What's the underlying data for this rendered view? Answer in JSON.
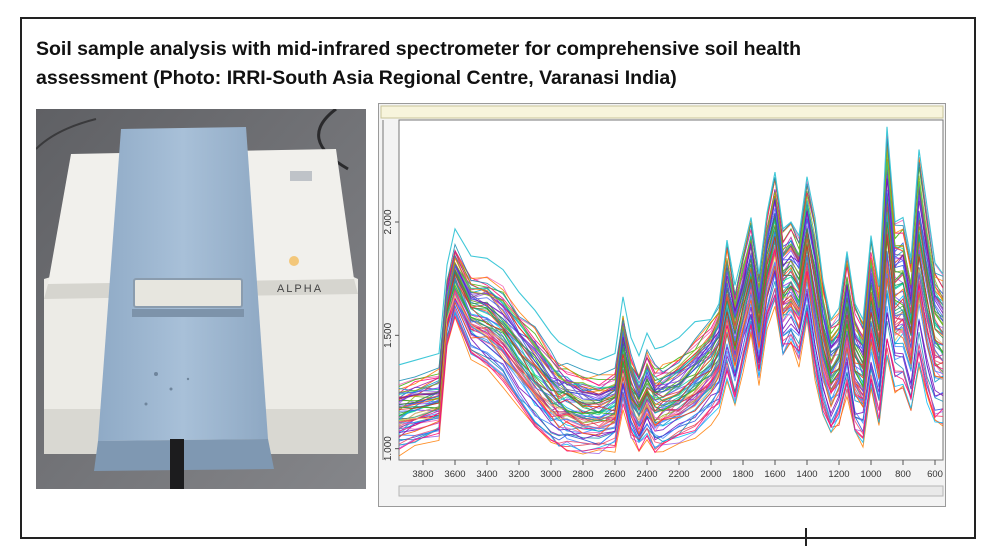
{
  "caption": {
    "line1": "Soil sample analysis with mid-infrared spectrometer for comprehensive soil health",
    "line2": "assessment (Photo: IRRI-South Asia Regional Centre, Varanasi India)"
  },
  "photo": {
    "device_label": "ALPHA",
    "colors": {
      "body": "#e9e7e1",
      "lid": "#9db6cf",
      "background": "#6d6e72"
    }
  },
  "chart_data": {
    "type": "line",
    "title": "",
    "xlabel": "",
    "ylabel": "",
    "x_ticks": [
      "3800",
      "3600",
      "3400",
      "3200",
      "3000",
      "2800",
      "2600",
      "2400",
      "2200",
      "2000",
      "1800",
      "1600",
      "1400",
      "1200",
      "1000",
      "800",
      "600"
    ],
    "y_ticks": [
      "1.000",
      "1.500",
      "2.000"
    ],
    "xlim": [
      3950,
      550
    ],
    "ylim": [
      0.95,
      2.45
    ],
    "x_reversed": true,
    "grid": false,
    "legend": "none",
    "envelope": {
      "x": [
        3950,
        3850,
        3700,
        3650,
        3600,
        3500,
        3400,
        3300,
        3200,
        3100,
        3000,
        2950,
        2900,
        2800,
        2700,
        2600,
        2550,
        2500,
        2450,
        2400,
        2350,
        2300,
        2200,
        2100,
        2000,
        1950,
        1900,
        1850,
        1800,
        1750,
        1700,
        1650,
        1600,
        1550,
        1500,
        1450,
        1400,
        1350,
        1300,
        1250,
        1200,
        1150,
        1100,
        1050,
        1000,
        950,
        900,
        850,
        800,
        750,
        700,
        650,
        600,
        550
      ],
      "low": [
        1.0,
        1.02,
        1.05,
        1.45,
        1.58,
        1.4,
        1.35,
        1.28,
        1.18,
        1.08,
        1.02,
        1.0,
        0.99,
        0.98,
        0.99,
        1.01,
        1.2,
        1.05,
        0.99,
        1.05,
        0.99,
        1.0,
        1.03,
        1.07,
        1.13,
        1.18,
        1.3,
        1.2,
        1.35,
        1.5,
        1.3,
        1.55,
        1.65,
        1.4,
        1.45,
        1.38,
        1.55,
        1.3,
        1.15,
        1.05,
        1.1,
        1.25,
        1.05,
        1.02,
        1.25,
        1.1,
        1.4,
        1.25,
        1.25,
        1.15,
        1.35,
        1.2,
        1.1,
        1.1
      ],
      "high": [
        1.28,
        1.3,
        1.33,
        1.72,
        1.88,
        1.76,
        1.75,
        1.7,
        1.6,
        1.52,
        1.42,
        1.38,
        1.36,
        1.32,
        1.3,
        1.33,
        1.58,
        1.4,
        1.32,
        1.42,
        1.35,
        1.36,
        1.4,
        1.47,
        1.55,
        1.62,
        1.9,
        1.7,
        1.85,
        2.0,
        1.75,
        2.02,
        2.2,
        1.95,
        1.98,
        1.92,
        2.18,
        2.0,
        1.72,
        1.55,
        1.6,
        1.85,
        1.62,
        1.55,
        1.92,
        1.7,
        2.4,
        1.98,
        2.0,
        1.82,
        2.3,
        2.05,
        1.8,
        1.75
      ]
    },
    "series_count": 70,
    "outlier_series_color": "#40c8d8"
  }
}
